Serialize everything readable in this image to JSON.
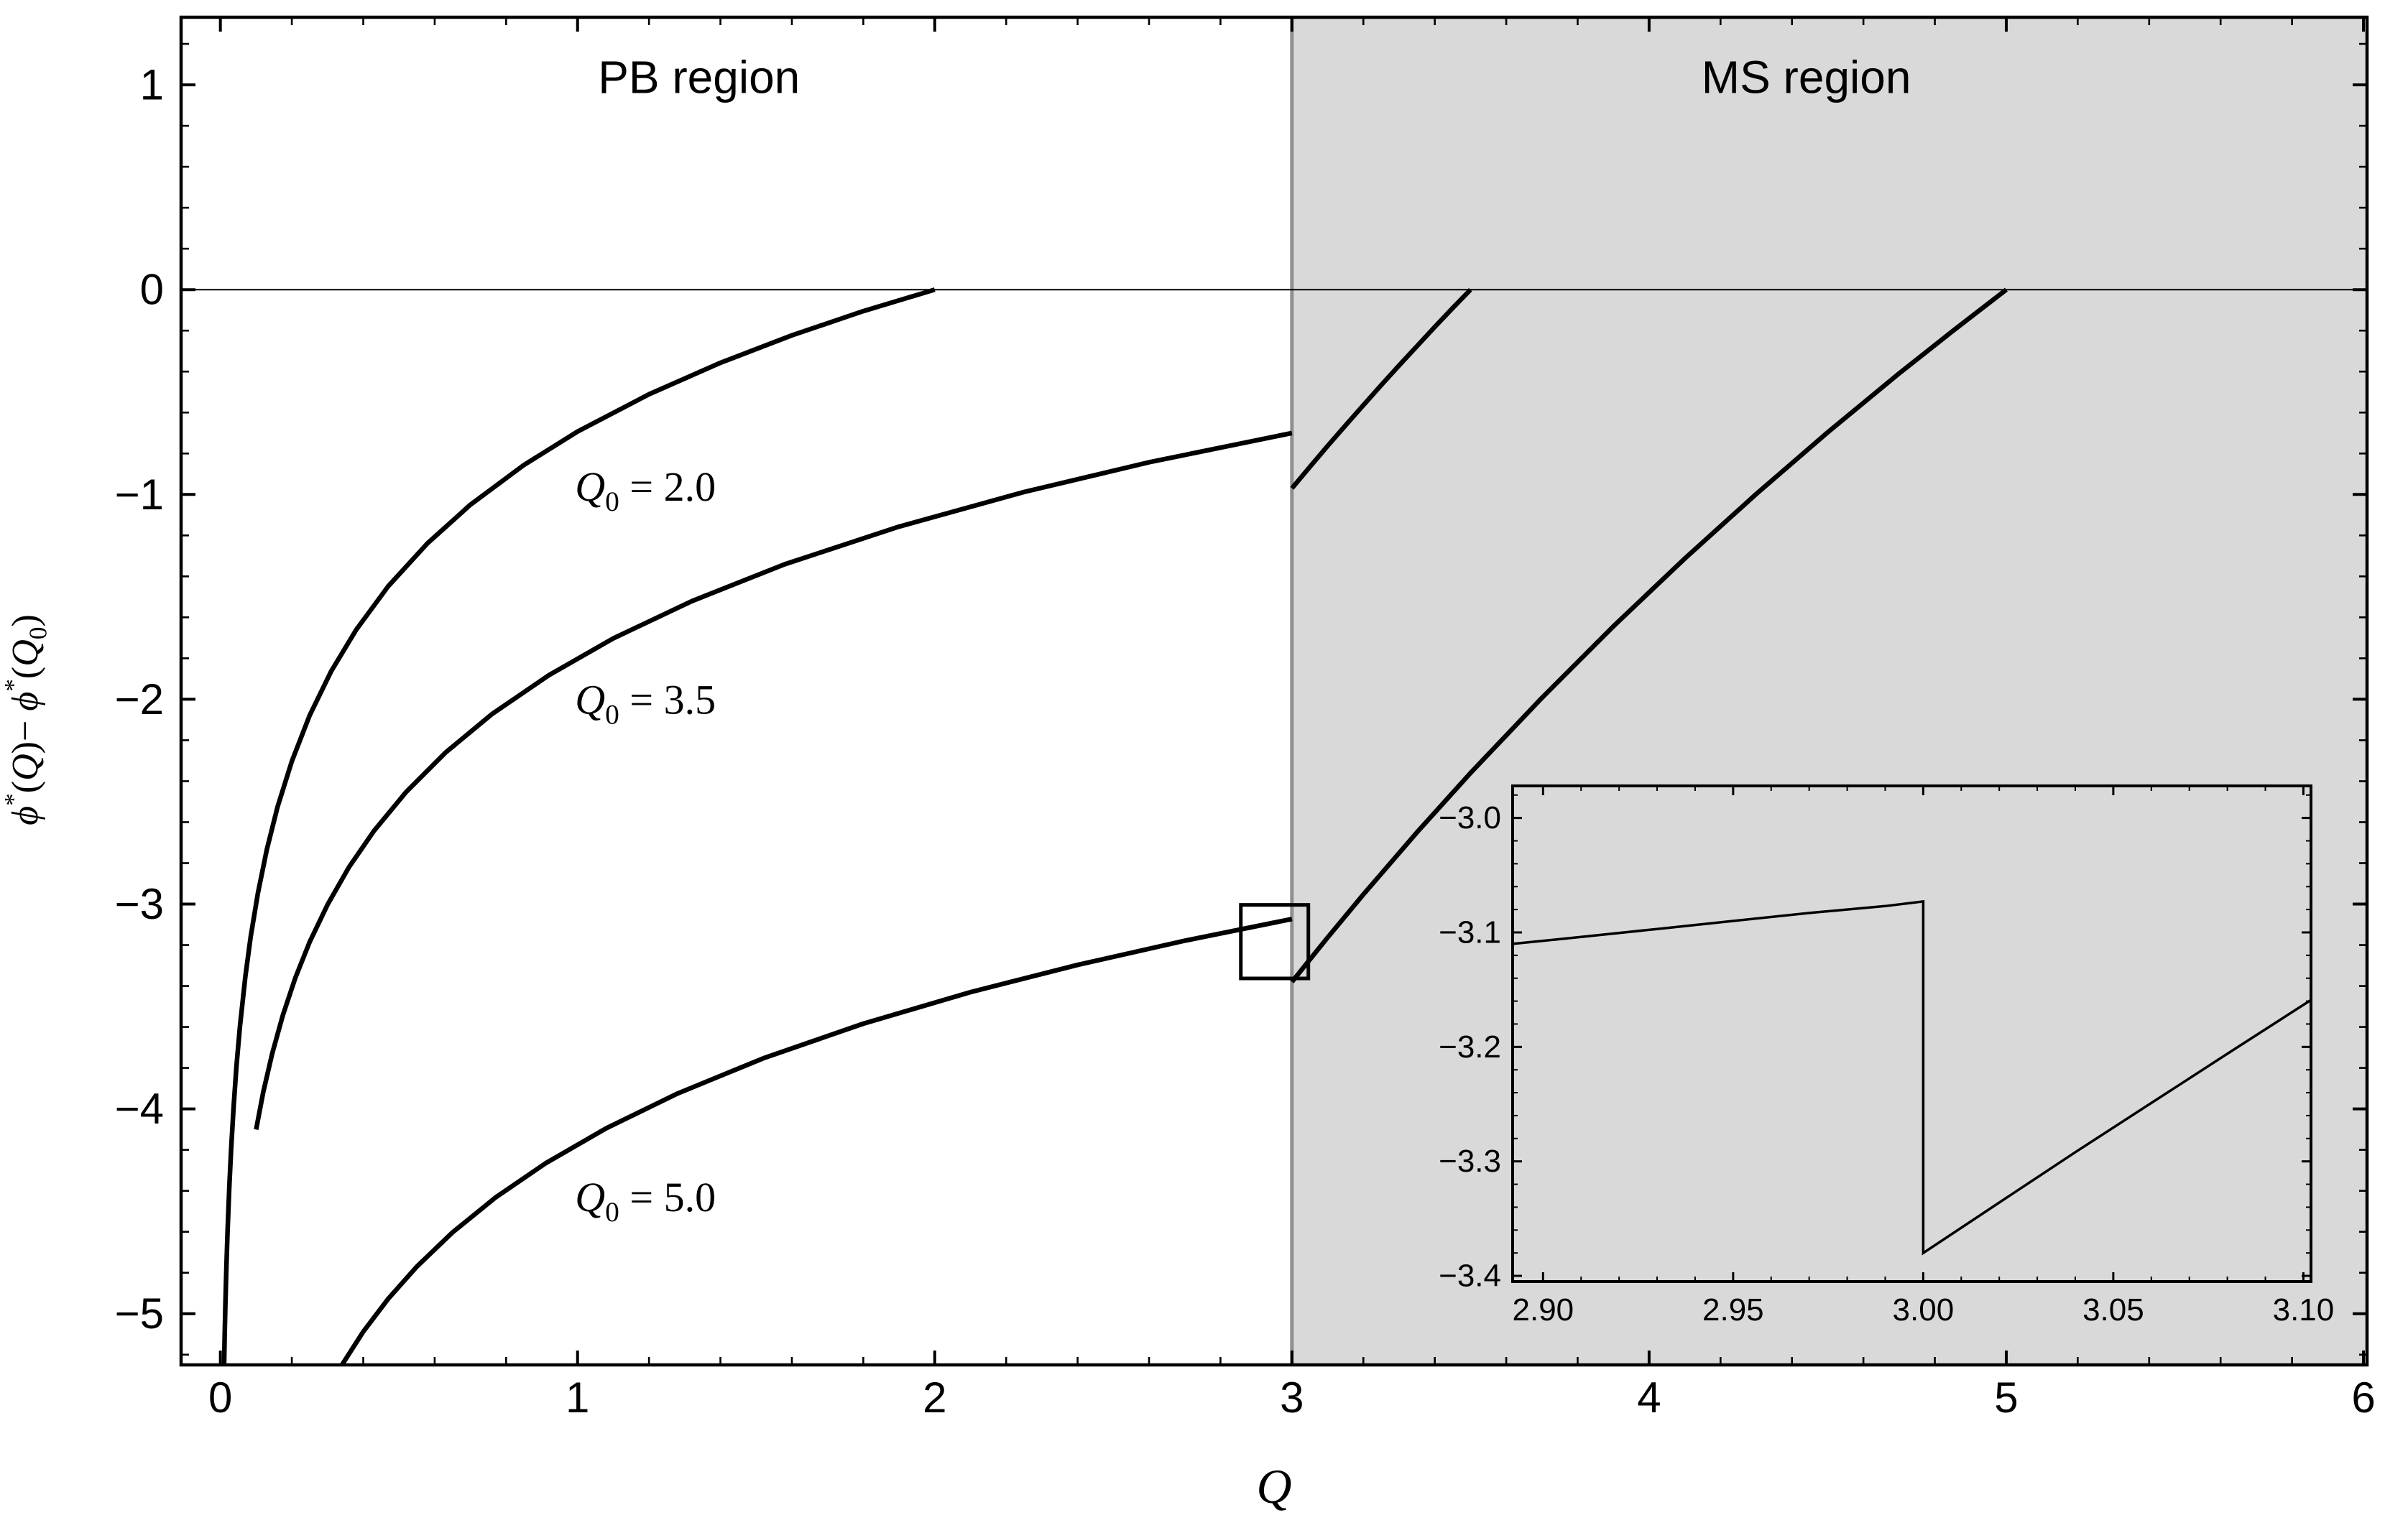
{
  "chart_data": {
    "type": "line",
    "title": "",
    "xlabel_parts": [
      {
        "t": "Q",
        "s": "i"
      }
    ],
    "ylabel_parts": [
      {
        "t": "ϕ",
        "s": "i"
      },
      {
        "t": "*",
        "s": "sup"
      },
      {
        "t": "(",
        "s": "p"
      },
      {
        "t": "Q",
        "s": "i"
      },
      {
        "t": ")− ",
        "s": "p"
      },
      {
        "t": "ϕ",
        "s": "i"
      },
      {
        "t": "*",
        "s": "sup"
      },
      {
        "t": "(",
        "s": "p"
      },
      {
        "t": "Q",
        "s": "i"
      },
      {
        "t": "0",
        "s": "sub"
      },
      {
        "t": ")",
        "s": "p"
      }
    ],
    "axes": {
      "xlim": [
        -0.11,
        6.01
      ],
      "ylim": [
        -5.25,
        1.33
      ],
      "x_ticks": {
        "major": [
          0,
          1,
          2,
          3,
          4,
          5,
          6
        ],
        "labels": [
          "0",
          "1",
          "2",
          "3",
          "4",
          "5",
          "6"
        ],
        "minor_step": 0.2
      },
      "y_ticks": {
        "major": [
          1,
          0,
          -1,
          -2,
          -3,
          -4,
          -5
        ],
        "labels": [
          "1",
          "0",
          "−1",
          "−2",
          "−3",
          "−4",
          "−5"
        ],
        "minor_step": 0.2
      },
      "frame": true,
      "grid": false
    },
    "regions": [
      {
        "id": "pb",
        "label": "PB region",
        "x_range": [
          -0.11,
          3.0
        ],
        "fill": "#ffffff",
        "label_pos": [
          1.34,
          0.96
        ]
      },
      {
        "id": "ms",
        "label": "MS region",
        "x_range": [
          3.0,
          6.01
        ],
        "fill": "#d9d9d9",
        "label_pos": [
          4.44,
          0.96
        ]
      }
    ],
    "boundary": {
      "x": 3.0,
      "color": "#8f8f8f"
    },
    "zero_line": {
      "y": 0
    },
    "series": [
      {
        "id": "q0-2.0",
        "name": "Q0 = 2.0",
        "q0": 2.0,
        "label_parts": [
          {
            "t": "Q",
            "s": "i"
          },
          {
            "t": "0",
            "s": "sub"
          },
          {
            "t": " = 2.0",
            "s": "p"
          }
        ],
        "label_pos": [
          1.19,
          -1.03
        ],
        "segments": [
          {
            "region": "PB",
            "points": [
              [
                0.0105,
                -5.25
              ],
              [
                0.012,
                -5.116
              ],
              [
                0.014,
                -4.962
              ],
              [
                0.017,
                -4.768
              ],
              [
                0.02,
                -4.605
              ],
              [
                0.025,
                -4.382
              ],
              [
                0.03,
                -4.2
              ],
              [
                0.037,
                -3.99
              ],
              [
                0.045,
                -3.794
              ],
              [
                0.055,
                -3.594
              ],
              [
                0.07,
                -3.352
              ],
              [
                0.085,
                -3.158
              ],
              [
                0.105,
                -2.947
              ],
              [
                0.13,
                -2.734
              ],
              [
                0.16,
                -2.526
              ],
              [
                0.2,
                -2.303
              ],
              [
                0.25,
                -2.079
              ],
              [
                0.31,
                -1.864
              ],
              [
                0.38,
                -1.661
              ],
              [
                0.47,
                -1.448
              ],
              [
                0.58,
                -1.238
              ],
              [
                0.7,
                -1.05
              ],
              [
                0.85,
                -0.856
              ],
              [
                1.0,
                -0.693
              ],
              [
                1.2,
                -0.511
              ],
              [
                1.4,
                -0.357
              ],
              [
                1.6,
                -0.223
              ],
              [
                1.8,
                -0.105
              ],
              [
                2.0,
                0
              ]
            ]
          }
        ]
      },
      {
        "id": "q0-3.5",
        "name": "Q0 = 3.5",
        "q0": 3.5,
        "label_parts": [
          {
            "t": "Q",
            "s": "i"
          },
          {
            "t": "0",
            "s": "sub"
          },
          {
            "t": " = 3.5",
            "s": "p"
          }
        ],
        "label_pos": [
          1.19,
          -2.07
        ],
        "segments": [
          {
            "region": "PB",
            "points": [
              [
                0.1,
                -4.101
              ],
              [
                0.12,
                -3.919
              ],
              [
                0.145,
                -3.73
              ],
              [
                0.175,
                -3.542
              ],
              [
                0.21,
                -3.359
              ],
              [
                0.25,
                -3.185
              ],
              [
                0.3,
                -3.003
              ],
              [
                0.36,
                -2.82
              ],
              [
                0.43,
                -2.643
              ],
              [
                0.52,
                -2.453
              ],
              [
                0.63,
                -2.261
              ],
              [
                0.76,
                -2.073
              ],
              [
                0.92,
                -1.882
              ],
              [
                1.1,
                -1.703
              ],
              [
                1.32,
                -1.521
              ],
              [
                1.58,
                -1.341
              ],
              [
                1.9,
                -1.157
              ],
              [
                2.25,
                -0.988
              ],
              [
                2.6,
                -0.843
              ],
              [
                3.0,
                -0.7
              ]
            ]
          },
          {
            "region": "MS",
            "points": [
              [
                3.0,
                -0.97
              ],
              [
                3.05,
                -0.866
              ],
              [
                3.1,
                -0.763
              ],
              [
                3.15,
                -0.663
              ],
              [
                3.2,
                -0.564
              ],
              [
                3.25,
                -0.466
              ],
              [
                3.3,
                -0.37
              ],
              [
                3.35,
                -0.276
              ],
              [
                3.4,
                -0.182
              ],
              [
                3.45,
                -0.09
              ],
              [
                3.5,
                0
              ]
            ]
          }
        ]
      },
      {
        "id": "q0-5.0",
        "name": "Q0 = 5.0",
        "q0": 5.0,
        "label_parts": [
          {
            "t": "Q",
            "s": "i"
          },
          {
            "t": "0",
            "s": "sub"
          },
          {
            "t": " = 5.0",
            "s": "p"
          }
        ],
        "label_pos": [
          1.19,
          -4.5
        ],
        "segments": [
          {
            "region": "PB",
            "points": [
              [
                0.34,
                -5.251
              ],
              [
                0.4,
                -5.088
              ],
              [
                0.47,
                -4.927
              ],
              [
                0.55,
                -4.77
              ],
              [
                0.65,
                -4.603
              ],
              [
                0.77,
                -4.433
              ],
              [
                0.91,
                -4.266
              ],
              [
                1.08,
                -4.095
              ],
              [
                1.28,
                -3.925
              ],
              [
                1.52,
                -3.753
              ],
              [
                1.8,
                -3.584
              ],
              [
                2.1,
                -3.43
              ],
              [
                2.4,
                -3.297
              ],
              [
                2.7,
                -3.179
              ],
              [
                3.0,
                -3.073
              ]
            ]
          },
          {
            "region": "MS",
            "points": [
              [
                3.0,
                -3.38
              ],
              [
                3.05,
                -3.271
              ],
              [
                3.1,
                -3.163
              ],
              [
                3.2,
                -2.953
              ],
              [
                3.35,
                -2.65
              ],
              [
                3.5,
                -2.36
              ],
              [
                3.7,
                -1.993
              ],
              [
                3.9,
                -1.644
              ],
              [
                4.1,
                -1.313
              ],
              [
                4.3,
                -0.998
              ],
              [
                4.5,
                -0.697
              ],
              [
                4.7,
                -0.409
              ],
              [
                4.85,
                -0.202
              ],
              [
                5.0,
                0
              ]
            ]
          }
        ]
      }
    ],
    "zoom_rect": {
      "x": [
        2.857,
        3.046
      ],
      "y": [
        -3.363,
        -3.004
      ]
    },
    "inset": {
      "xlim": [
        2.892,
        3.102
      ],
      "ylim": [
        -3.405,
        -2.972
      ],
      "x_ticks": {
        "major": [
          2.9,
          2.95,
          3.0,
          3.05,
          3.1
        ],
        "labels": [
          "2.90",
          "2.95",
          "3.00",
          "3.05",
          "3.10"
        ],
        "minor_step": 0.01
      },
      "y_ticks": {
        "major": [
          -3.0,
          -3.1,
          -3.2,
          -3.3,
          -3.4
        ],
        "labels": [
          "−3.0",
          "−3.1",
          "−3.2",
          "−3.3",
          "−3.4"
        ],
        "minor_step": 0.02
      },
      "curve_points": [
        [
          2.892,
          -3.11
        ],
        [
          2.91,
          -3.104
        ],
        [
          2.93,
          -3.097
        ],
        [
          2.95,
          -3.09
        ],
        [
          2.97,
          -3.083
        ],
        [
          2.99,
          -3.077
        ],
        [
          3.0,
          -3.073
        ],
        [
          3.0,
          -3.38
        ],
        [
          3.02,
          -3.336
        ],
        [
          3.04,
          -3.292
        ],
        [
          3.06,
          -3.249
        ],
        [
          3.08,
          -3.206
        ],
        [
          3.102,
          -3.159
        ]
      ]
    }
  }
}
